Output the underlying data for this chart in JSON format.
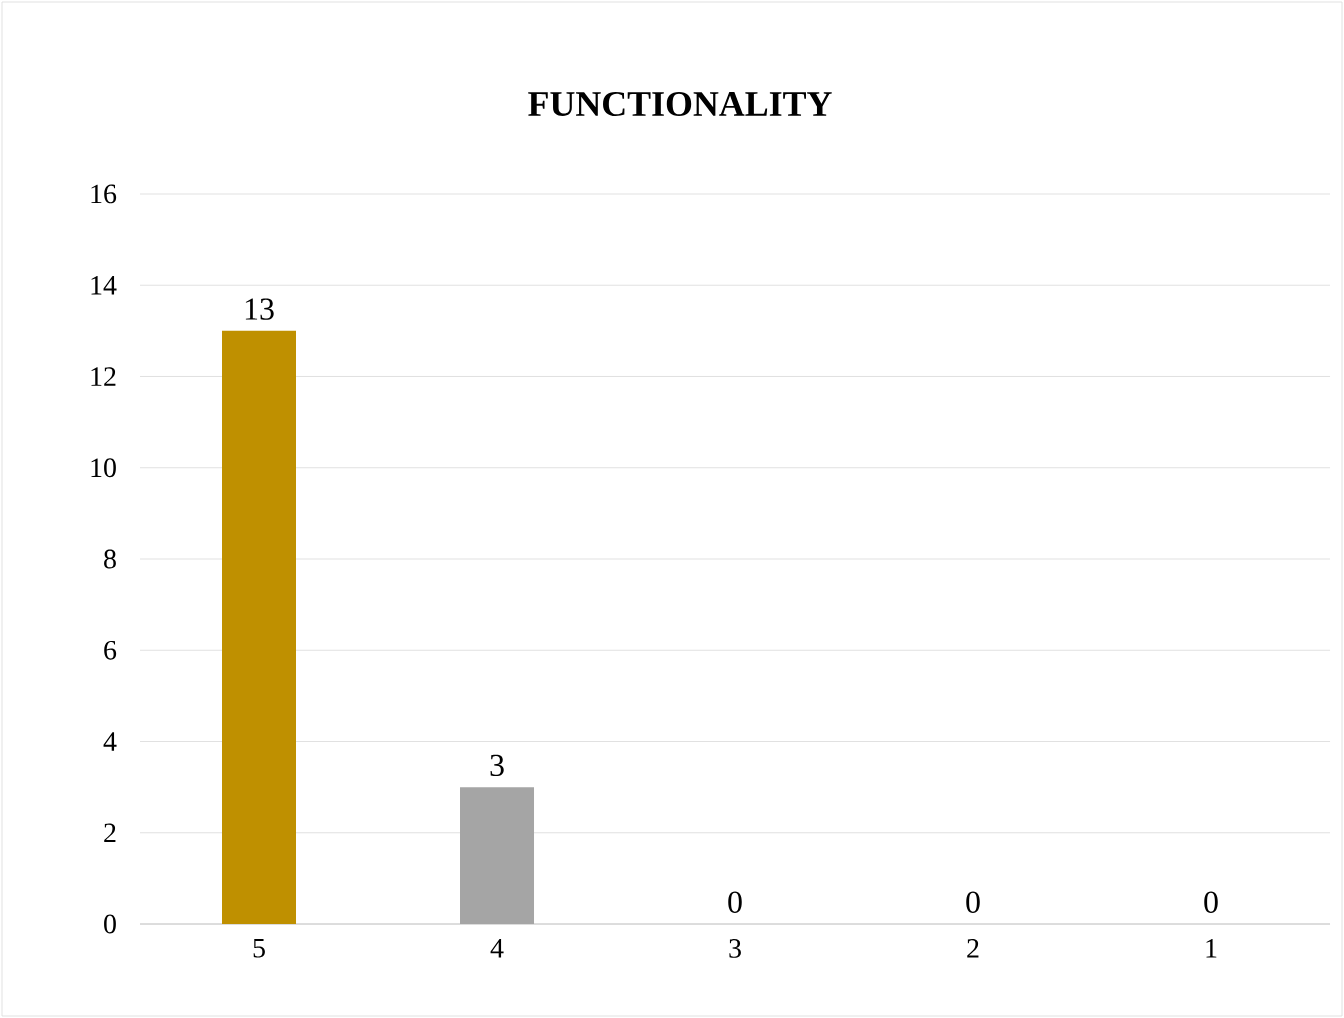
{
  "chart_data": {
    "type": "bar",
    "title": "FUNCTIONALITY",
    "categories": [
      "5",
      "4",
      "3",
      "2",
      "1"
    ],
    "values": [
      13,
      3,
      0,
      0,
      0
    ],
    "colors": [
      "#bf9000",
      "#a5a5a5",
      "#a5a5a5",
      "#a5a5a5",
      "#a5a5a5"
    ],
    "ylim": [
      0,
      16
    ],
    "yticks": [
      0,
      2,
      4,
      6,
      8,
      10,
      12,
      14,
      16
    ],
    "grid": "y",
    "data_labels": true
  }
}
